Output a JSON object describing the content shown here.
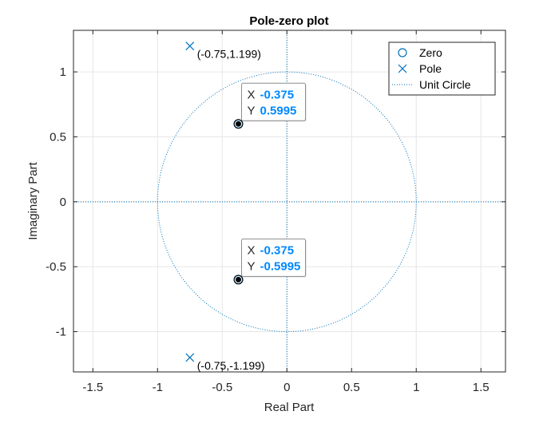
{
  "chart_data": {
    "type": "scatter",
    "title": "Pole-zero plot",
    "xlabel": "Real Part",
    "ylabel": "Imaginary Part",
    "xlim": [
      -1.65,
      1.69
    ],
    "ylim": [
      -1.31,
      1.32
    ],
    "xticks": [
      -1.5,
      -1,
      -0.5,
      0,
      0.5,
      1,
      1.5
    ],
    "xtick_labels": [
      "-1.5",
      "-1",
      "-0.5",
      "0",
      "0.5",
      "1",
      "1.5"
    ],
    "yticks": [
      -1,
      -0.5,
      0,
      0.5,
      1
    ],
    "ytick_labels": [
      "-1",
      "-0.5",
      "0",
      "0.5",
      "1"
    ],
    "grid": true,
    "legend_position": "top-right",
    "colors": {
      "series": "#0072bd",
      "datatip_value": "#0088ff",
      "grid": "#e6e6e6",
      "axis": "#262626"
    },
    "series": [
      {
        "name": "Zero",
        "marker": "circle",
        "x": [
          -0.375,
          -0.375
        ],
        "y": [
          0.5995,
          -0.5995
        ]
      },
      {
        "name": "Pole",
        "marker": "x",
        "x": [
          -0.75,
          -0.75
        ],
        "y": [
          1.199,
          -1.199
        ]
      },
      {
        "name": "Unit Circle",
        "style": "dotted",
        "radius": 1
      }
    ],
    "annotations": [
      {
        "text": "(-0.75,1.199)",
        "x": -0.75,
        "y": 1.199
      },
      {
        "text": "(-0.75,-1.199)",
        "x": -0.75,
        "y": -1.199
      }
    ],
    "datatips": [
      {
        "x": -0.375,
        "y": 0.5995,
        "x_label": "X",
        "y_label": "Y",
        "x_text": "-0.375",
        "y_text": "0.5995"
      },
      {
        "x": -0.375,
        "y": -0.5995,
        "x_label": "X",
        "y_label": "Y",
        "x_text": "-0.375",
        "y_text": "-0.5995"
      }
    ]
  }
}
